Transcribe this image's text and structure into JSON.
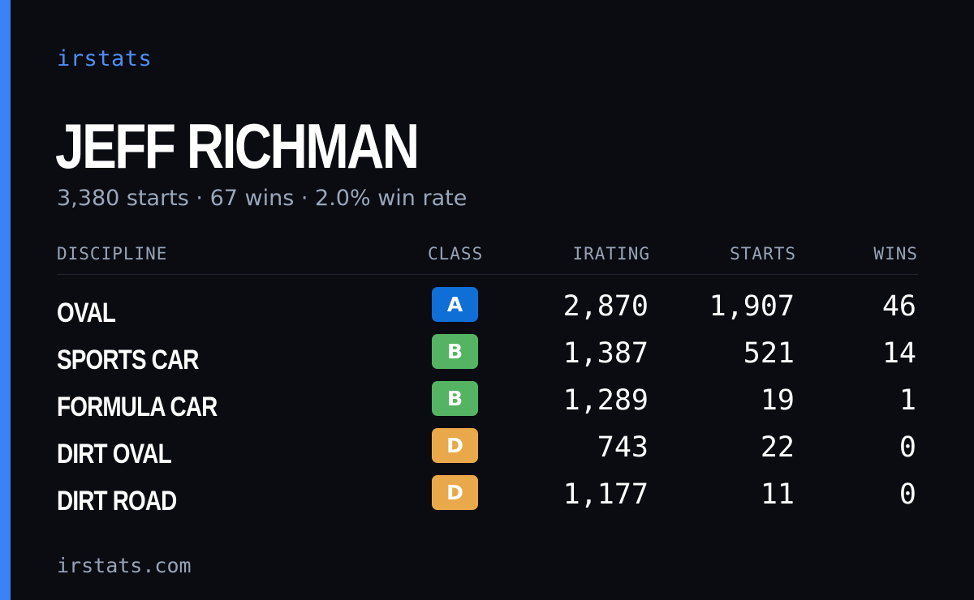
{
  "brand": "irstats",
  "driver": {
    "name": "JEFF RICHMAN",
    "summary": "3,380 starts · 67 wins · 2.0% win rate"
  },
  "table": {
    "headers": {
      "discipline": "DISCIPLINE",
      "class": "CLASS",
      "irating": "IRATING",
      "starts": "STARTS",
      "wins": "WINS"
    },
    "rows": [
      {
        "discipline": "OVAL",
        "class": "A",
        "irating": "2,870",
        "starts": "1,907",
        "wins": "46"
      },
      {
        "discipline": "SPORTS CAR",
        "class": "B",
        "irating": "1,387",
        "starts": "521",
        "wins": "14"
      },
      {
        "discipline": "FORMULA CAR",
        "class": "B",
        "irating": "1,289",
        "starts": "19",
        "wins": "1"
      },
      {
        "discipline": "DIRT OVAL",
        "class": "D",
        "irating": "743",
        "starts": "22",
        "wins": "0"
      },
      {
        "discipline": "DIRT ROAD",
        "class": "D",
        "irating": "1,177",
        "starts": "11",
        "wins": "0"
      }
    ]
  },
  "footer": {
    "domain": "irstats.com"
  },
  "colors": {
    "accent": "#3b82f6",
    "background": "#0a0c12",
    "class_a": "#0f6fd6",
    "class_b": "#55b464",
    "class_d": "#e9a94a"
  }
}
